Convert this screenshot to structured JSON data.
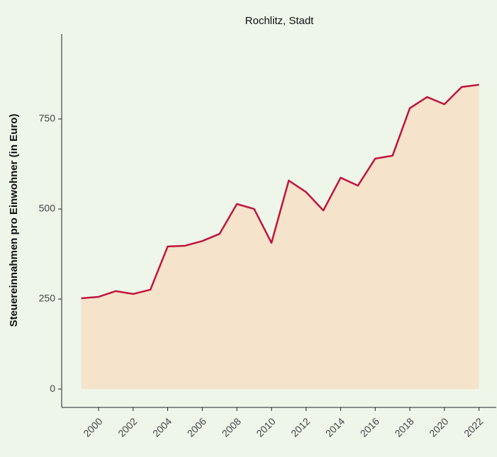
{
  "chart_data": {
    "type": "area",
    "title": "Rochlitz, Stadt",
    "y_label": "Steuereinnahmen pro Einwohner (in Euro)",
    "x": [
      1999,
      2000,
      2001,
      2002,
      2003,
      2004,
      2005,
      2006,
      2007,
      2008,
      2009,
      2010,
      2011,
      2012,
      2013,
      2014,
      2015,
      2016,
      2017,
      2018,
      2019,
      2020,
      2021,
      2022
    ],
    "values": [
      252,
      256,
      272,
      264,
      276,
      396,
      398,
      411,
      431,
      514,
      500,
      406,
      579,
      547,
      496,
      587,
      565,
      640,
      648,
      780,
      811,
      791,
      839,
      845
    ],
    "color": "#c0143c",
    "fill": "#f5e3cb",
    "xlim": [
      1997.87,
      2023.0
    ],
    "xticks": [
      2000,
      2002,
      2004,
      2006,
      2008,
      2010,
      2012,
      2014,
      2016,
      2018,
      2020,
      2022
    ],
    "ylim": [
      -51,
      986
    ],
    "yticks": [
      0,
      250,
      500,
      750
    ],
    "grid": false
  }
}
